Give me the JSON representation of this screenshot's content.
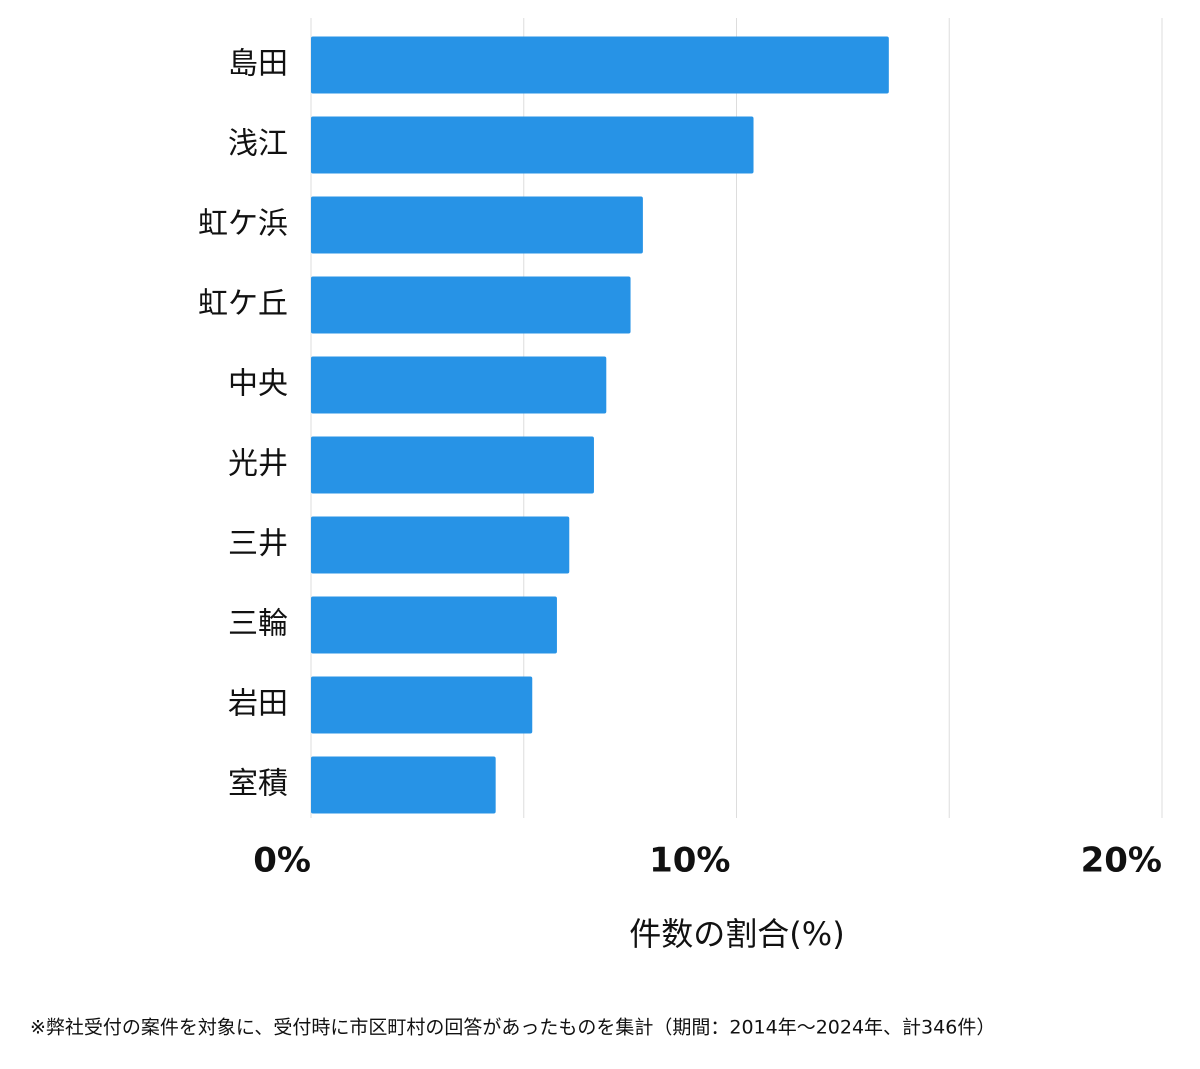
{
  "chart_data": {
    "type": "bar",
    "orientation": "horizontal",
    "categories": [
      "島田",
      "浅江",
      "虹ケ浜",
      "虹ケ丘",
      "中央",
      "光井",
      "三井",
      "三輪",
      "岩田",
      "室積"
    ],
    "values": [
      13.58,
      10.4,
      7.8,
      7.51,
      6.94,
      6.65,
      6.07,
      5.78,
      5.2,
      4.34
    ],
    "color": "#2793e6",
    "xlim": [
      0,
      20
    ],
    "xticks": [
      {
        "value": 0,
        "label": "0%"
      },
      {
        "value": 10,
        "label": "10%"
      },
      {
        "value": 20,
        "label": "20%"
      }
    ],
    "minor_xticks": [
      5,
      15
    ],
    "grid": true,
    "x_label": "件数の割合(%)",
    "footnote": "※弊社受付の案件を対象に、受付時に市区町村の回答があったものを集計（期間：2014年～2024年、計346件）"
  }
}
